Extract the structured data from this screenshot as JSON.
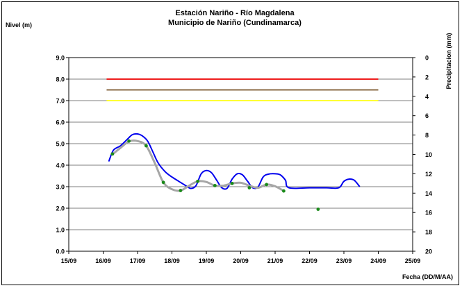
{
  "chart_data": {
    "type": "line",
    "title": "Estación Nariño  - Río Magdalena",
    "subtitle": "Municipio de Nariño (Cundinamarca)",
    "ylabel_left": "Nivel (m)",
    "ylabel_right": "Precipitacion (mm)",
    "xlabel": "Fecha (DD/M/AA)",
    "x_ticks": [
      "15/09",
      "16/09",
      "17/09",
      "18/09",
      "19/09",
      "20/09",
      "21/09",
      "22/09",
      "23/09",
      "24/09",
      "25/09"
    ],
    "y_left_ticks": [
      "0.0",
      "1.0",
      "2.0",
      "3.0",
      "4.0",
      "5.0",
      "6.0",
      "7.0",
      "8.0",
      "9.0"
    ],
    "y_right_ticks": [
      "0",
      "2",
      "4",
      "6",
      "8",
      "10",
      "12",
      "14",
      "16",
      "18",
      "20"
    ],
    "ylim_left": [
      0,
      9
    ],
    "ylim_right_inverted": [
      0,
      20
    ],
    "grid": "horizontal",
    "thresholds": [
      {
        "value": 8.0,
        "color": "#ee1c1c"
      },
      {
        "value": 7.5,
        "color": "#8b6b45"
      },
      {
        "value": 7.0,
        "color": "#ffff33"
      }
    ],
    "threshold_x_range": [
      16.1,
      24.0
    ],
    "series": [
      {
        "style": "line",
        "color": "#0000ee",
        "points": [
          [
            16.17,
            4.2
          ],
          [
            16.3,
            4.7
          ],
          [
            16.5,
            4.9
          ],
          [
            16.7,
            5.2
          ],
          [
            16.85,
            5.42
          ],
          [
            17.0,
            5.45
          ],
          [
            17.15,
            5.35
          ],
          [
            17.3,
            5.1
          ],
          [
            17.45,
            4.6
          ],
          [
            17.6,
            4.1
          ],
          [
            17.8,
            3.7
          ],
          [
            18.0,
            3.45
          ],
          [
            18.2,
            3.25
          ],
          [
            18.4,
            3.05
          ],
          [
            18.55,
            2.92
          ],
          [
            18.7,
            3.05
          ],
          [
            18.85,
            3.6
          ],
          [
            19.0,
            3.75
          ],
          [
            19.15,
            3.65
          ],
          [
            19.3,
            3.3
          ],
          [
            19.45,
            2.95
          ],
          [
            19.6,
            2.92
          ],
          [
            19.75,
            3.35
          ],
          [
            19.9,
            3.6
          ],
          [
            20.05,
            3.55
          ],
          [
            20.2,
            3.25
          ],
          [
            20.35,
            2.95
          ],
          [
            20.5,
            2.98
          ],
          [
            20.65,
            3.45
          ],
          [
            20.8,
            3.58
          ],
          [
            21.0,
            3.6
          ],
          [
            21.15,
            3.55
          ],
          [
            21.3,
            3.3
          ],
          [
            21.4,
            2.95
          ],
          [
            22.0,
            2.95
          ],
          [
            22.5,
            2.95
          ],
          [
            22.85,
            2.95
          ],
          [
            23.0,
            3.25
          ],
          [
            23.15,
            3.35
          ],
          [
            23.3,
            3.3
          ],
          [
            23.45,
            3.02
          ]
        ]
      },
      {
        "style": "line",
        "color": "#a6a6a6",
        "points": [
          [
            16.27,
            4.5
          ],
          [
            16.5,
            4.8
          ],
          [
            16.75,
            5.1
          ],
          [
            17.0,
            5.12
          ],
          [
            17.25,
            4.9
          ],
          [
            17.5,
            4.1
          ],
          [
            17.75,
            3.2
          ],
          [
            18.0,
            2.88
          ],
          [
            18.25,
            2.82
          ],
          [
            18.5,
            3.05
          ],
          [
            18.75,
            3.25
          ],
          [
            19.0,
            3.22
          ],
          [
            19.25,
            3.05
          ],
          [
            19.5,
            3.05
          ],
          [
            19.75,
            3.15
          ],
          [
            20.0,
            3.18
          ],
          [
            20.25,
            3.05
          ],
          [
            20.5,
            2.95
          ],
          [
            20.75,
            3.1
          ],
          [
            21.0,
            3.02
          ],
          [
            21.25,
            2.8
          ]
        ]
      },
      {
        "style": "markers",
        "color": "#1a8a1a",
        "points": [
          [
            16.27,
            4.52
          ],
          [
            16.75,
            5.12
          ],
          [
            17.25,
            4.9
          ],
          [
            17.75,
            3.2
          ],
          [
            18.25,
            2.82
          ],
          [
            18.75,
            3.25
          ],
          [
            19.25,
            3.05
          ],
          [
            19.75,
            3.15
          ],
          [
            20.25,
            2.95
          ],
          [
            20.75,
            3.1
          ],
          [
            21.25,
            2.8
          ],
          [
            22.25,
            1.95
          ]
        ]
      }
    ]
  }
}
